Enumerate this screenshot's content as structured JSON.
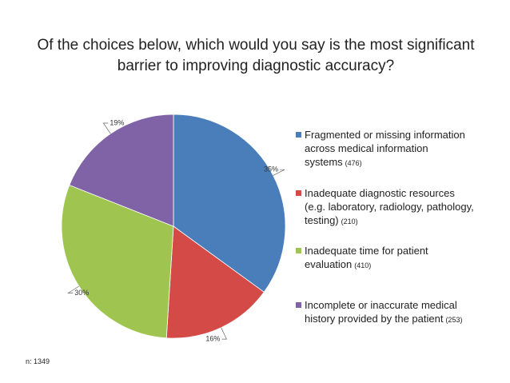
{
  "chart_data": {
    "type": "pie",
    "title": "Of the choices below, which would you say is the most significant barrier to improving diagnostic accuracy?",
    "categories": [
      "Fragmented or missing information across medical information systems",
      "Inadequate diagnostic resources (e.g. laboratory, radiology, pathology, testing)",
      "Inadequate time for patient evaluation",
      "Incomplete or inaccurate medical history provided by the patient"
    ],
    "values": [
      35,
      16,
      30,
      19
    ],
    "value_labels": [
      "35%",
      "16%",
      "30%",
      "19%"
    ],
    "counts": [
      476,
      210,
      410,
      253
    ],
    "count_labels": [
      "(476)",
      "(210)",
      "(410)",
      "(253)"
    ],
    "colors": [
      "#4a7ebb",
      "#d44a47",
      "#9fc550",
      "#8062a6"
    ],
    "legend": "right",
    "note": "n: 1349"
  }
}
